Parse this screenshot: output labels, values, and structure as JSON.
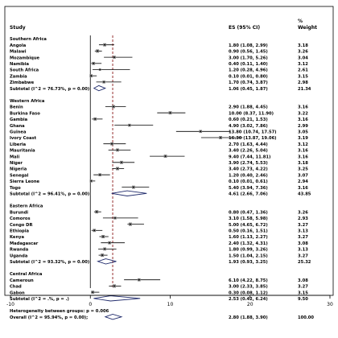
{
  "chart_data": {
    "type": "forest",
    "headers": {
      "study": "Study",
      "es": "ES (95% CI)",
      "weight_pct": "%",
      "weight": "Weight"
    },
    "x_ticks": [
      -10,
      0,
      10,
      20,
      30
    ],
    "xlim": [
      -10,
      30
    ],
    "null_line": 0,
    "overall_ref_line": 2.8,
    "groups": [
      {
        "name": "Southern Africa",
        "studies": [
          {
            "label": "Angola",
            "es": 1.8,
            "lo": 1.08,
            "hi": 2.99,
            "text": "1.80 (1.08, 2.99)",
            "weight": "3.18"
          },
          {
            "label": "Malawi",
            "es": 0.9,
            "lo": 0.56,
            "hi": 1.45,
            "text": "0.90 (0.56, 1.45)",
            "weight": "3.26"
          },
          {
            "label": "Mozambique",
            "es": 3.0,
            "lo": 1.7,
            "hi": 5.26,
            "text": "3.00 (1.70, 5.26)",
            "weight": "3.04"
          },
          {
            "label": "Namibia",
            "es": 0.4,
            "lo": 0.11,
            "hi": 1.4,
            "text": "0.40 (0.11, 1.40)",
            "weight": "3.12"
          },
          {
            "label": "South Africa",
            "es": 1.2,
            "lo": 0.28,
            "hi": 4.96,
            "text": "1.20 (0.28, 4.96)",
            "weight": "2.61"
          },
          {
            "label": "Zambia",
            "es": 0.1,
            "lo": 0.01,
            "hi": 0.8,
            "text": "0.10 (0.01, 0.80)",
            "weight": "3.15"
          },
          {
            "label": "Zimbabwe",
            "es": 1.7,
            "lo": 0.74,
            "hi": 3.87,
            "text": "1.70 (0.74, 3.87)",
            "weight": "2.98"
          }
        ],
        "subtotal": {
          "label": "Subtotal  (I^2 = 76.73%, p = 0.00)",
          "es": 1.06,
          "lo": 0.45,
          "hi": 1.87,
          "text": "1.06 (0.45, 1.87)",
          "weight": "21.34"
        }
      },
      {
        "name": "Western Africa",
        "studies": [
          {
            "label": "Benin",
            "es": 2.9,
            "lo": 1.88,
            "hi": 4.45,
            "text": "2.90 (1.88, 4.45)",
            "weight": "3.16"
          },
          {
            "label": "Burkina Faso",
            "es": 10.0,
            "lo": 8.37,
            "hi": 11.9,
            "text": "10.00 (8.37, 11.90)",
            "weight": "3.22"
          },
          {
            "label": "Gambia",
            "es": 0.6,
            "lo": 0.21,
            "hi": 1.53,
            "text": "0.60 (0.21, 1.53)",
            "weight": "3.16"
          },
          {
            "label": "Ghana",
            "es": 4.9,
            "lo": 3.02,
            "hi": 7.86,
            "text": "4.90 (3.02, 7.86)",
            "weight": "2.99"
          },
          {
            "label": "Guinea",
            "es": 13.8,
            "lo": 10.74,
            "hi": 17.57,
            "text": "13.80 (10.74, 17.57)",
            "weight": "3.05"
          },
          {
            "label": "Ivory Coast",
            "es": 16.3,
            "lo": 13.87,
            "hi": 19.06,
            "text": "16.30 (13.87, 19.06)",
            "weight": "3.19"
          },
          {
            "label": "Liberia",
            "es": 2.7,
            "lo": 1.63,
            "hi": 4.44,
            "text": "2.70 (1.63, 4.44)",
            "weight": "3.12"
          },
          {
            "label": "Mauritania",
            "es": 3.4,
            "lo": 2.26,
            "hi": 5.04,
            "text": "3.40 (2.26, 5.04)",
            "weight": "3.16"
          },
          {
            "label": "Mali",
            "es": 9.4,
            "lo": 7.44,
            "hi": 11.81,
            "text": "9.40 (7.44, 11.81)",
            "weight": "3.16"
          },
          {
            "label": "Niger",
            "es": 3.9,
            "lo": 2.74,
            "hi": 5.53,
            "text": "3.90 (2.74, 5.53)",
            "weight": "3.18"
          },
          {
            "label": "Nigeria",
            "es": 3.4,
            "lo": 2.73,
            "hi": 4.22,
            "text": "3.40 (2.73, 4.22)",
            "weight": "3.25"
          },
          {
            "label": "Senegal",
            "es": 1.2,
            "lo": 0.4,
            "hi": 2.46,
            "text": "1.20 (0.40, 2.46)",
            "weight": "3.07"
          },
          {
            "label": "Sierra Leone",
            "es": 0.1,
            "lo": 0.01,
            "hi": 0.61,
            "text": "0.10 (0.01, 0.61)",
            "weight": "2.94"
          },
          {
            "label": "Togo",
            "es": 5.4,
            "lo": 3.94,
            "hi": 7.36,
            "text": "5.40 (3.94, 7.36)",
            "weight": "3.16"
          }
        ],
        "subtotal": {
          "label": "Subtotal  (I^2 = 96.41%, p = 0.00)",
          "es": 4.61,
          "lo": 2.66,
          "hi": 7.06,
          "text": "4.61 (2.66, 7.06)",
          "weight": "43.85"
        }
      },
      {
        "name": "Eastern Africa",
        "studies": [
          {
            "label": "Burundi",
            "es": 0.8,
            "lo": 0.47,
            "hi": 1.36,
            "text": "0.80 (0.47, 1.36)",
            "weight": "3.26"
          },
          {
            "label": "Comoros",
            "es": 3.1,
            "lo": 1.58,
            "hi": 5.98,
            "text": "3.10 (1.58, 5.98)",
            "weight": "2.93"
          },
          {
            "label": "Congo DR",
            "es": 5.0,
            "lo": 4.65,
            "hi": 6.72,
            "text": "5.00 (4.65, 6.72)",
            "weight": "3.27"
          },
          {
            "label": "Ethiopia",
            "es": 0.5,
            "lo": 0.16,
            "hi": 1.51,
            "text": "0.50 (0.16, 1.51)",
            "weight": "3.13"
          },
          {
            "label": "Kenya",
            "es": 1.6,
            "lo": 1.13,
            "hi": 2.27,
            "text": "1.60 (1.13, 2.27)",
            "weight": "3.27"
          },
          {
            "label": "Madagascar",
            "es": 2.4,
            "lo": 1.32,
            "hi": 4.31,
            "text": "2.40 (1.32, 4.31)",
            "weight": "3.08"
          },
          {
            "label": "Rwanda",
            "es": 1.8,
            "lo": 0.99,
            "hi": 3.26,
            "text": "1.80 (0.99, 3.26)",
            "weight": "3.13"
          },
          {
            "label": "Uganda",
            "es": 1.5,
            "lo": 1.04,
            "hi": 2.15,
            "text": "1.50 (1.04, 2.15)",
            "weight": "3.27"
          }
        ],
        "subtotal": {
          "label": "Subtotal  (I^2 = 93.32%, p = 0.00)",
          "es": 1.93,
          "lo": 0.93,
          "hi": 3.25,
          "text": "1.93 (0.93, 3.25)",
          "weight": "25.32"
        }
      },
      {
        "name": "Central Africa",
        "studies": [
          {
            "label": "Cameroun",
            "es": 6.1,
            "lo": 4.22,
            "hi": 8.75,
            "text": "6.10 (4.22, 8.75)",
            "weight": "3.08"
          },
          {
            "label": "Chad",
            "es": 3.0,
            "lo": 2.33,
            "hi": 3.85,
            "text": "3.00 (2.33, 3.85)",
            "weight": "3.27"
          },
          {
            "label": "Gabon",
            "es": 0.3,
            "lo": 0.08,
            "hi": 1.12,
            "text": "0.30 (0.08, 1.12)",
            "weight": "3.15"
          }
        ],
        "subtotal": {
          "label": "Subtotal  (I^2 = .%, p = .)",
          "es": 2.53,
          "lo": 0.42,
          "hi": 6.24,
          "text": "2.53 (0.42, 6.24)",
          "weight": "9.50"
        }
      }
    ],
    "heterogeneity": "Heterogeneity between groups: p = 0.006",
    "overall": {
      "label": "Overall  (I^2 = 95.94%, p = 0.00);",
      "es": 2.8,
      "lo": 1.88,
      "hi": 3.9,
      "text": "2.80 (1.88, 3.90)",
      "weight": "100.00"
    },
    "colors": {
      "square": "#7f7f7f",
      "dot": "#000000",
      "diamond": "#1f2a6b",
      "ref_line": "#8b1a1a",
      "frame": "#000000"
    }
  }
}
